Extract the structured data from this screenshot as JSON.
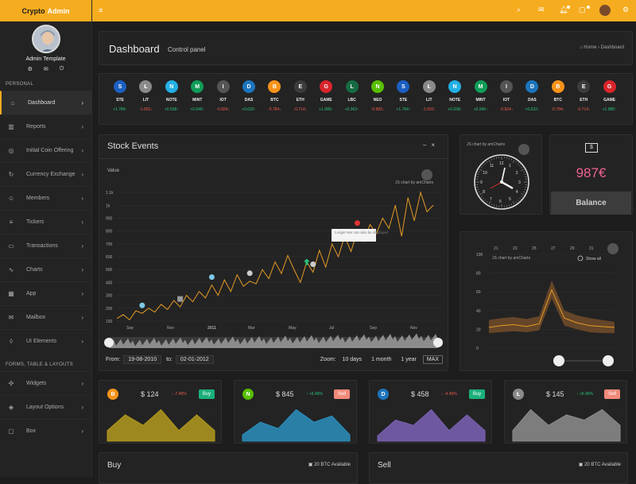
{
  "app": {
    "title_part1": "Crypto",
    "title_part2": "Admin",
    "accent": "#f5ac1f"
  },
  "profile": {
    "name": "Admin Template"
  },
  "sidebar": {
    "section1": "PERSONAL",
    "section2": "FORMS, TABLE & LAYOUTS",
    "items": [
      {
        "label": "Dashboard",
        "icon": "home-icon",
        "glyph": "⌂"
      },
      {
        "label": "Reports",
        "icon": "bar-chart-icon",
        "glyph": "▥"
      },
      {
        "label": "Initial Coin Offering",
        "icon": "compass-icon",
        "glyph": "◎"
      },
      {
        "label": "Currency Exchange",
        "icon": "refresh-icon",
        "glyph": "↻"
      },
      {
        "label": "Members",
        "icon": "users-icon",
        "glyph": "☺"
      },
      {
        "label": "Tickers",
        "icon": "sliders-icon",
        "glyph": "≡"
      },
      {
        "label": "Transactions",
        "icon": "folder-icon",
        "glyph": "▭"
      },
      {
        "label": "Charts",
        "icon": "line-chart-icon",
        "glyph": "∿"
      },
      {
        "label": "App",
        "icon": "grid-icon",
        "glyph": "▦"
      },
      {
        "label": "Mailbox",
        "icon": "mail-icon",
        "glyph": "✉"
      },
      {
        "label": "UI Elements",
        "icon": "drop-icon",
        "glyph": "◊"
      },
      {
        "label": "Widgets",
        "icon": "puzzle-icon",
        "glyph": "✣"
      },
      {
        "label": "Layout Options",
        "icon": "layers-icon",
        "glyph": "◈"
      },
      {
        "label": "Box",
        "icon": "monitor-icon",
        "glyph": "▢"
      }
    ]
  },
  "header": {
    "title": "Dashboard",
    "subtitle": "Control panel",
    "breadcrumb_home": "Home",
    "breadcrumb_current": "Dashboard"
  },
  "tickers": [
    {
      "name": "STE",
      "change": "+1.784",
      "dir": "up",
      "color": "#1b5fc2",
      "glyph": "S"
    },
    {
      "name": "LIT",
      "change": "-1.002",
      "dir": "down",
      "color": "#8a8a8a",
      "glyph": "Ł"
    },
    {
      "name": "NOTE",
      "change": "+0.938",
      "dir": "up",
      "color": "#23b0e5",
      "glyph": "N"
    },
    {
      "name": "MINT",
      "change": "+0.945",
      "dir": "up",
      "color": "#0f9d58",
      "glyph": "M"
    },
    {
      "name": "IOT",
      "change": "-0.824",
      "dir": "down",
      "color": "#555555",
      "glyph": "I"
    },
    {
      "name": "DAS",
      "change": "+0.632",
      "dir": "up",
      "color": "#1c75bc",
      "glyph": "D"
    },
    {
      "name": "BTC",
      "change": "-0.784",
      "dir": "down",
      "color": "#f7931a",
      "glyph": "B"
    },
    {
      "name": "ETH",
      "change": "-0.714",
      "dir": "down",
      "color": "#3c3c3d",
      "glyph": "E"
    },
    {
      "name": "GAME",
      "change": "+1.985",
      "dir": "up",
      "color": "#d8262b",
      "glyph": "G"
    },
    {
      "name": "LBC",
      "change": "+0.963",
      "dir": "up",
      "color": "#166b42",
      "glyph": "L"
    },
    {
      "name": "NEO",
      "change": "-0.983",
      "dir": "down",
      "color": "#58bf00",
      "glyph": "N"
    },
    {
      "name": "STE",
      "change": "+1.784",
      "dir": "up",
      "color": "#1b5fc2",
      "glyph": "S"
    },
    {
      "name": "LIT",
      "change": "-1.002",
      "dir": "down",
      "color": "#8a8a8a",
      "glyph": "Ł"
    },
    {
      "name": "NOTE",
      "change": "+0.938",
      "dir": "up",
      "color": "#23b0e5",
      "glyph": "N"
    },
    {
      "name": "MINT",
      "change": "+0.945",
      "dir": "up",
      "color": "#0f9d58",
      "glyph": "M"
    },
    {
      "name": "IOT",
      "change": "-0.824",
      "dir": "down",
      "color": "#555555",
      "glyph": "I"
    },
    {
      "name": "DAS",
      "change": "+0.632",
      "dir": "up",
      "color": "#1c75bc",
      "glyph": "D"
    },
    {
      "name": "BTC",
      "change": "-0.784",
      "dir": "down",
      "color": "#f7931a",
      "glyph": "B"
    },
    {
      "name": "ETH",
      "change": "-0.714",
      "dir": "down",
      "color": "#3c3c3d",
      "glyph": "E"
    },
    {
      "name": "GAME",
      "change": "+1.985",
      "dir": "up",
      "color": "#d8262b",
      "glyph": "G"
    }
  ],
  "stock": {
    "title": "Stock Events",
    "from_label": "From:",
    "from_value": "19-08-2010",
    "to_label": "to:",
    "to_value": "02-01-2012",
    "zoom_label": "Zoom:",
    "zoom_options": [
      "10 days",
      "1 month",
      "1 year",
      "MAX"
    ],
    "zoom_selected": "MAX",
    "credit": "JS chart by amCharts",
    "tooltip": "Longer text can also be displayed"
  },
  "chart_data": [
    {
      "type": "line",
      "title": "Stock Events",
      "ylabel": "Value",
      "y_ticks": [
        "100",
        "200",
        "300",
        "400",
        "500",
        "600",
        "700",
        "800",
        "900",
        "1k",
        "1.1k"
      ],
      "x_ticks": [
        "Sep",
        "Nov",
        "2011",
        "Mar",
        "May",
        "Jul",
        "Sep",
        "Nov"
      ],
      "ylim": [
        100,
        1150
      ],
      "color": "#e49a25",
      "values": [
        120,
        150,
        110,
        180,
        160,
        200,
        170,
        230,
        190,
        260,
        210,
        300,
        250,
        330,
        280,
        380,
        300,
        420,
        330,
        460,
        370,
        410,
        390,
        500,
        430,
        560,
        470,
        610,
        500,
        400,
        560,
        480,
        650,
        520,
        700,
        600,
        760,
        640,
        800,
        720,
        850,
        780,
        900,
        820,
        1000,
        760,
        1060,
        880,
        1100,
        950,
        1000
      ]
    },
    {
      "type": "area",
      "credit": "JS chart by amCharts",
      "show_all": "Show all",
      "x_ticks": [
        "21",
        "23",
        "25",
        "27",
        "29",
        "31"
      ],
      "y_ticks": [
        "0",
        "20",
        "40",
        "60",
        "80",
        "100"
      ],
      "ylim": [
        0,
        100
      ],
      "color": "#e49a25",
      "values": [
        22,
        24,
        25,
        23,
        26,
        62,
        32,
        27,
        24,
        23,
        22
      ],
      "upper": [
        30,
        32,
        33,
        31,
        34,
        72,
        40,
        35,
        32,
        30,
        28
      ],
      "lower": [
        16,
        17,
        18,
        17,
        19,
        53,
        24,
        20,
        17,
        16,
        16
      ]
    },
    {
      "type": "area",
      "values": [
        2,
        5,
        3,
        6,
        2,
        5,
        2
      ],
      "color": "#b39a1e"
    },
    {
      "type": "area",
      "values": [
        1,
        3,
        2,
        5,
        3,
        4,
        1
      ],
      "color": "#2b8fbd"
    },
    {
      "type": "area",
      "values": [
        1,
        4,
        3,
        6,
        2,
        5,
        2
      ],
      "color": "#7b61b5"
    },
    {
      "type": "area",
      "values": [
        2,
        6,
        3,
        5,
        4,
        6,
        3
      ],
      "color": "#8d8d8d"
    }
  ],
  "balance": {
    "value": "987€",
    "button": "Balance"
  },
  "mini_cards": [
    {
      "coin": "BTC",
      "price": "$ 124",
      "change": "-7.45%",
      "dir": "down",
      "button": "Buy",
      "icon_color": "#f7931a",
      "glyph": "B"
    },
    {
      "coin": "NEO",
      "price": "$ 845",
      "change": "+5.45%",
      "dir": "up",
      "button": "Sell",
      "icon_color": "#58bf00",
      "glyph": "N"
    },
    {
      "coin": "DAS",
      "price": "$ 458",
      "change": "-4.45%",
      "dir": "down",
      "button": "Buy",
      "icon_color": "#1c75bc",
      "glyph": "D"
    },
    {
      "coin": "LIT",
      "price": "$ 145",
      "change": "+5.45%",
      "dir": "up",
      "button": "Sell",
      "icon_color": "#8a8a8a",
      "glyph": "Ł"
    }
  ],
  "buy": {
    "title": "Buy",
    "available": "20 BTC Available"
  },
  "sell": {
    "title": "Sell",
    "available": "20 BTC Available"
  }
}
